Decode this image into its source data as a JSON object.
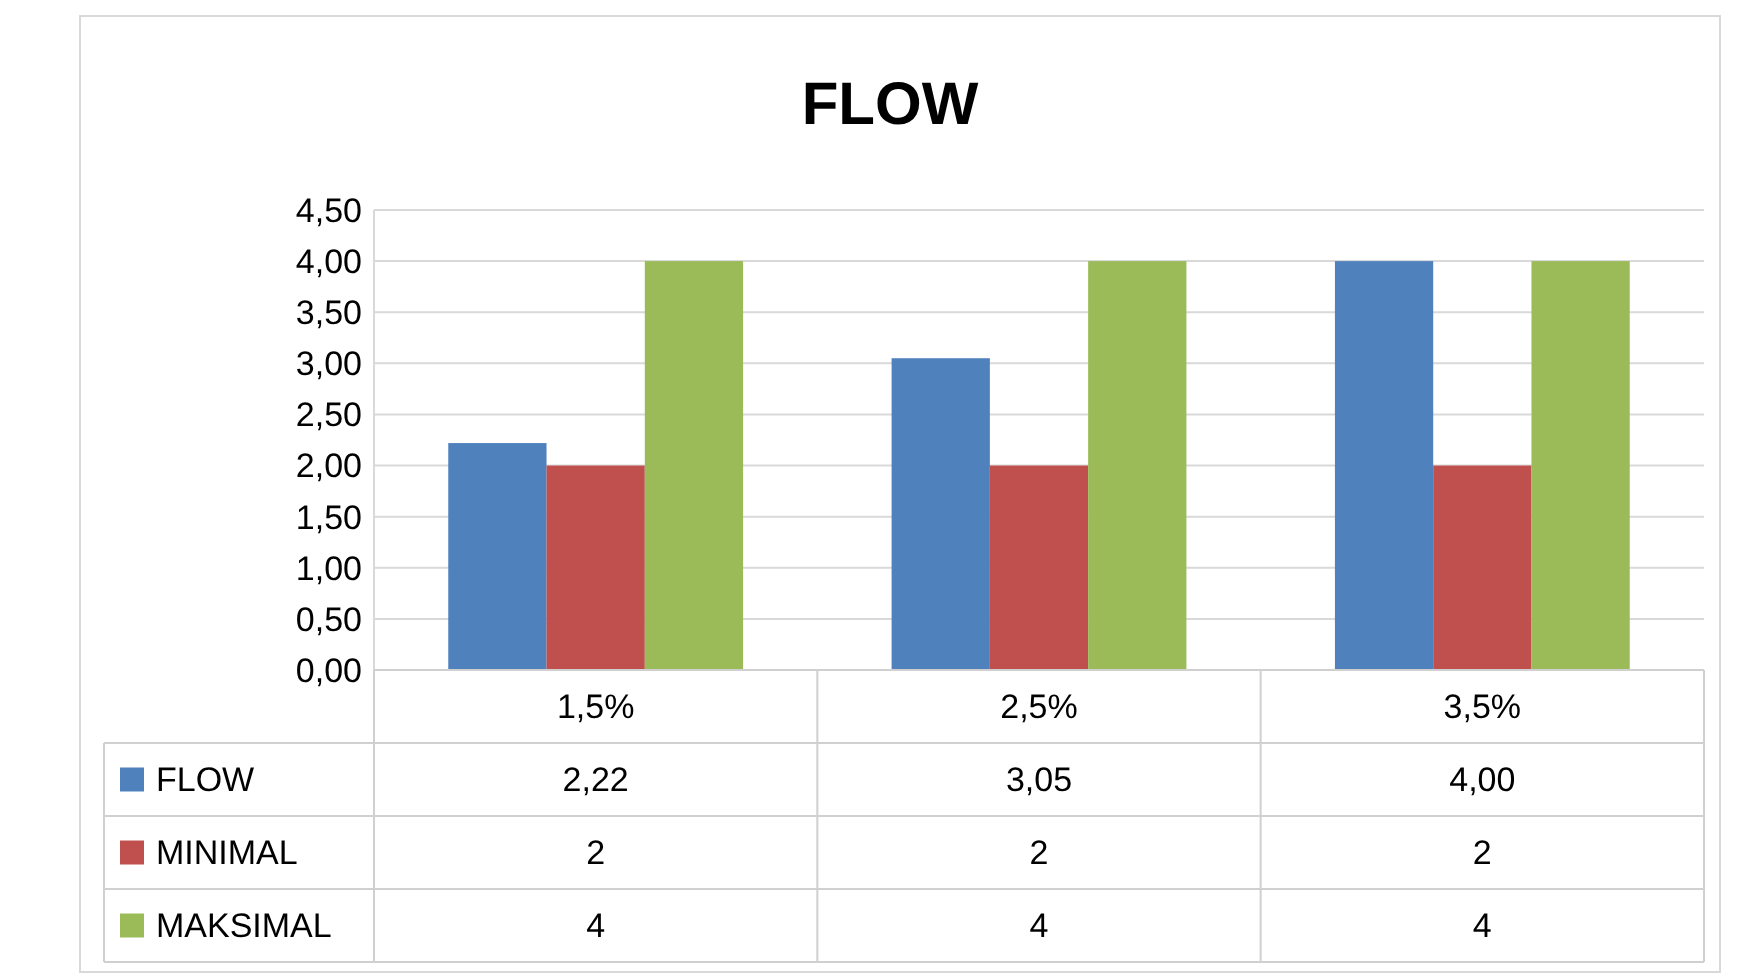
{
  "chart_data": {
    "type": "bar",
    "title": "FLOW",
    "categories": [
      "1,5%",
      "2,5%",
      "3,5%"
    ],
    "series": [
      {
        "name": "FLOW",
        "color": "#4f81bd",
        "values": [
          2.22,
          3.05,
          4.0
        ],
        "value_labels": [
          "2,22",
          "3,05",
          "4,00"
        ]
      },
      {
        "name": "MINIMAL",
        "color": "#c0504d",
        "values": [
          2,
          2,
          2
        ],
        "value_labels": [
          "2",
          "2",
          "2"
        ]
      },
      {
        "name": "MAKSIMAL",
        "color": "#9bbb59",
        "values": [
          4,
          4,
          4
        ],
        "value_labels": [
          "4",
          "4",
          "4"
        ]
      }
    ],
    "ylim": [
      0,
      4.5
    ],
    "yticks": [
      {
        "value": 0,
        "label": "0,00"
      },
      {
        "value": 0.5,
        "label": "0,50"
      },
      {
        "value": 1,
        "label": "1,00"
      },
      {
        "value": 1.5,
        "label": "1,50"
      },
      {
        "value": 2,
        "label": "2,00"
      },
      {
        "value": 2.5,
        "label": "2,50"
      },
      {
        "value": 3,
        "label": "3,00"
      },
      {
        "value": 3.5,
        "label": "3,50"
      },
      {
        "value": 4,
        "label": "4,00"
      },
      {
        "value": 4.5,
        "label": "4,50"
      }
    ],
    "grid": "y",
    "legend": "bottom"
  }
}
